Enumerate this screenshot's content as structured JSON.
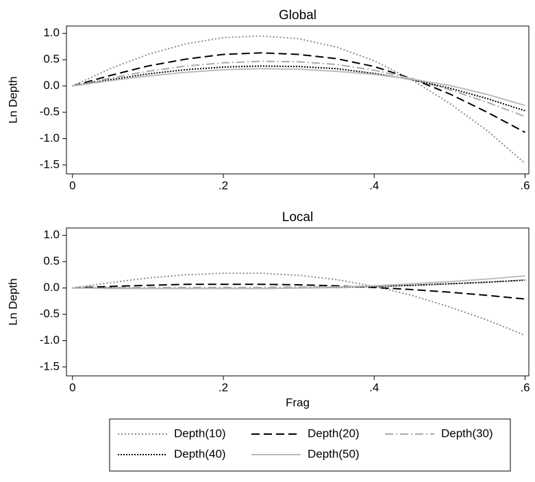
{
  "chart_data": [
    {
      "type": "line",
      "title": "Global",
      "ylabel": "Ln Depth",
      "x": [
        0,
        0.05,
        0.1,
        0.15,
        0.2,
        0.25,
        0.3,
        0.35,
        0.4,
        0.45,
        0.5,
        0.55,
        0.6
      ],
      "xlim": [
        -0.008,
        0.605
      ],
      "ylim": [
        -1.67,
        1.14
      ],
      "xticks": [
        0,
        {
          "value": 0.2,
          "label": ".2"
        },
        {
          "value": 0.4,
          "label": ".4"
        },
        {
          "value": 0.6,
          "label": ".6"
        }
      ],
      "yticks": [
        {
          "value": 1,
          "label": "1.0"
        },
        0.5,
        {
          "value": 0,
          "label": "0.0"
        },
        -0.5,
        {
          "value": -1,
          "label": "-1.0"
        },
        -1.5
      ],
      "legend": "bottom",
      "series": [
        {
          "name": "Depth(10)",
          "color": "#888888",
          "dash": "2,3",
          "values": [
            0,
            0.33,
            0.6,
            0.8,
            0.92,
            0.95,
            0.9,
            0.74,
            0.48,
            0.12,
            -0.33,
            -0.85,
            -1.47
          ]
        },
        {
          "name": "Depth(20)",
          "color": "#000000",
          "dash": "12,6",
          "values": [
            0,
            0.2,
            0.38,
            0.51,
            0.6,
            0.63,
            0.6,
            0.52,
            0.37,
            0.14,
            -0.15,
            -0.5,
            -0.88
          ]
        },
        {
          "name": "Depth(30)",
          "color": "#aaaaaa",
          "dash": "12,4,2,4",
          "values": [
            0,
            0.15,
            0.28,
            0.38,
            0.44,
            0.47,
            0.46,
            0.41,
            0.3,
            0.14,
            -0.07,
            -0.31,
            -0.58
          ]
        },
        {
          "name": "Depth(40)",
          "color": "#000000",
          "dash": "2,2",
          "values": [
            0,
            0.12,
            0.23,
            0.31,
            0.36,
            0.38,
            0.37,
            0.33,
            0.24,
            0.12,
            -0.04,
            -0.24,
            -0.47
          ]
        },
        {
          "name": "Depth(50)",
          "color": "#bbbbbb",
          "dash": "none",
          "values": [
            0,
            0.1,
            0.19,
            0.26,
            0.31,
            0.33,
            0.32,
            0.28,
            0.22,
            0.13,
            0.01,
            -0.16,
            -0.37
          ]
        }
      ]
    },
    {
      "type": "line",
      "title": "Local",
      "ylabel": "Ln Depth",
      "xlabel": "Frag",
      "x": [
        0,
        0.05,
        0.1,
        0.15,
        0.2,
        0.25,
        0.3,
        0.35,
        0.4,
        0.45,
        0.5,
        0.55,
        0.6
      ],
      "xlim": [
        -0.008,
        0.605
      ],
      "ylim": [
        -1.67,
        1.14
      ],
      "xticks": [
        0,
        {
          "value": 0.2,
          "label": ".2"
        },
        {
          "value": 0.4,
          "label": ".4"
        },
        {
          "value": 0.6,
          "label": ".6"
        }
      ],
      "yticks": [
        {
          "value": 1,
          "label": "1.0"
        },
        0.5,
        {
          "value": 0,
          "label": "0.0"
        },
        -0.5,
        {
          "value": -1,
          "label": "-1.0"
        },
        -1.5
      ],
      "series": [
        {
          "color": "#888888",
          "dash": "2,3",
          "values": [
            0,
            0.1,
            0.19,
            0.25,
            0.28,
            0.28,
            0.24,
            0.16,
            0.03,
            -0.14,
            -0.36,
            -0.61,
            -0.9
          ]
        },
        {
          "color": "#000000",
          "dash": "12,6",
          "values": [
            0,
            0.03,
            0.05,
            0.07,
            0.07,
            0.07,
            0.06,
            0.04,
            0.01,
            -0.03,
            -0.08,
            -0.14,
            -0.21
          ]
        },
        {
          "color": "#aaaaaa",
          "dash": "12,4,2,4",
          "values": [
            0,
            0,
            0.01,
            0.01,
            0.01,
            0.01,
            0.02,
            0.02,
            0.03,
            0.05,
            0.08,
            0.11,
            0.15
          ]
        },
        {
          "color": "#000000",
          "dash": "2,2",
          "values": [
            0,
            0,
            -0.01,
            -0.01,
            -0.01,
            -0.01,
            0,
            0.01,
            0.03,
            0.05,
            0.08,
            0.11,
            0.15
          ]
        },
        {
          "color": "#bbbbbb",
          "dash": "none",
          "values": [
            0,
            -0.01,
            -0.01,
            -0.01,
            -0.01,
            -0.01,
            0,
            0.02,
            0.04,
            0.08,
            0.12,
            0.17,
            0.23
          ]
        }
      ]
    }
  ]
}
